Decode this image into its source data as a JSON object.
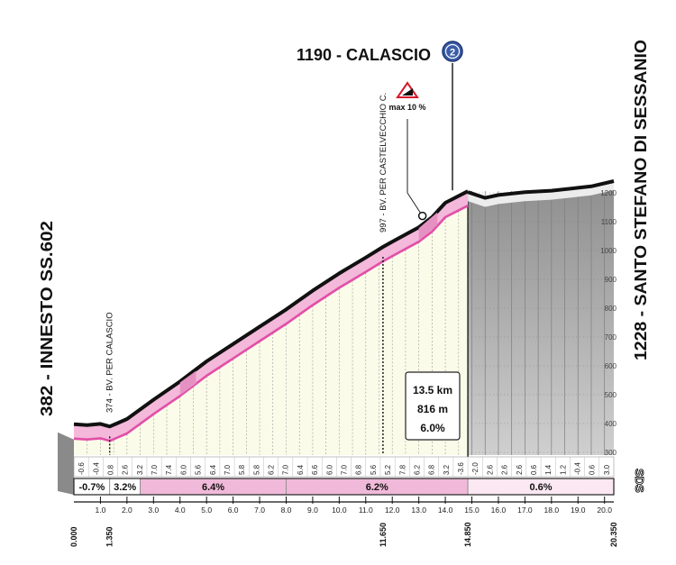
{
  "chart_data": {
    "type": "area",
    "title": "",
    "xlabel": "",
    "ylabel": "",
    "xlim": [
      0,
      20.35
    ],
    "ylim": [
      300,
      1250
    ],
    "profile": {
      "x": [
        0.0,
        0.5,
        1.0,
        1.35,
        2.0,
        3.0,
        4.0,
        5.0,
        6.0,
        7.0,
        8.0,
        9.0,
        10.0,
        11.0,
        11.65,
        12.0,
        13.0,
        13.5,
        14.0,
        14.85,
        15.5,
        16.0,
        17.0,
        18.0,
        19.0,
        19.5,
        20.35
      ],
      "elevation": [
        382,
        379,
        383,
        374,
        400,
        467,
        530,
        600,
        660,
        720,
        780,
        845,
        905,
        960,
        997,
        1015,
        1065,
        1100,
        1150,
        1190,
        1170,
        1180,
        1190,
        1195,
        1205,
        1210,
        1228
      ]
    },
    "km_ticks": [
      "1.0",
      "2.0",
      "3.0",
      "4.0",
      "5.0",
      "6.0",
      "7.0",
      "8.0",
      "9.0",
      "10.0",
      "11.0",
      "12.0",
      "13.0",
      "14.0",
      "15.0",
      "16.0",
      "17.0",
      "18.0",
      "19.0",
      "20.0"
    ],
    "km_markers": [
      "0.000",
      "1.350",
      "11.650",
      "14.850",
      "20.350"
    ],
    "altitude_ticks": [
      "300",
      "400",
      "500",
      "600",
      "700",
      "800",
      "900",
      "1000",
      "1100",
      "1200"
    ],
    "gradients": [
      "-0.6",
      "-0.4",
      "0.8",
      "2.6",
      "3.2",
      "7.0",
      "7.4",
      "6.0",
      "5.6",
      "6.4",
      "7.0",
      "5.8",
      "5.8",
      "6.2",
      "7.0",
      "6.4",
      "6.6",
      "6.0",
      "7.0",
      "6.8",
      "5.6",
      "5.2",
      "7.8",
      "6.2",
      "6.8",
      "3.2",
      "-3.6",
      "-2.0",
      "2.6",
      "2.6",
      "2.6",
      "0.6",
      "1.4",
      "1.2",
      "-0.4",
      "0.6",
      "3.0"
    ],
    "segments": [
      {
        "label": "-0.7%",
        "from": 0.0,
        "to": 1.35,
        "color": "#ffffff"
      },
      {
        "label": "3.2%",
        "from": 1.35,
        "to": 2.5,
        "color": "#ffffff"
      },
      {
        "label": "6.4%",
        "from": 2.5,
        "to": 8.0,
        "color": "#f1b9d9"
      },
      {
        "label": "6.2%",
        "from": 8.0,
        "to": 14.85,
        "color": "#f1b9d9"
      },
      {
        "label": "0.6%",
        "from": 14.85,
        "to": 20.35,
        "color": "#fbe8f2"
      }
    ],
    "climb_km": 14.85,
    "climb_info": {
      "length": "13.5 km",
      "gain": "816 m",
      "average": "6.0%"
    },
    "max_gradient": {
      "label": "max 10 %",
      "km": 13.0,
      "elevation": 1120
    },
    "start_label": "382 - INNESTO SS.602",
    "summit_label": "1190 - CALASCIO",
    "summit_badge": "2",
    "finish_label": "1228 - SANTO STEFANO DI SESSANIO",
    "waypoints": [
      {
        "label": "374 - BV. PER CALASCIO",
        "km": 1.35,
        "elevation": 374
      },
      {
        "label": "997 - BV. PER CASTELVECCHIO C.",
        "km": 11.65,
        "elevation": 997
      }
    ],
    "logo": "SDS",
    "colors": {
      "climb_fill": "#fbfbe9",
      "road": "#e24ea7",
      "road_band": "#f3b8da",
      "road_band_dark": "#e691c3",
      "flat_fill": "#b9b9b9",
      "flat_dark": "#8f8f8f"
    }
  }
}
